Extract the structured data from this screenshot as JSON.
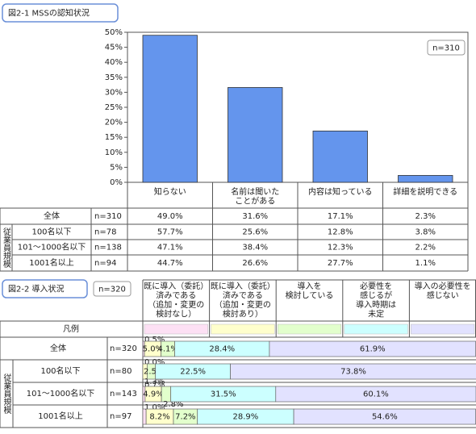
{
  "chart_data": [
    {
      "type": "bar",
      "title": "図2-1 MSSの認知状況",
      "note": "n=310",
      "categories": [
        "知らない",
        "名前は聞いた\nことがある",
        "内容は知っている",
        "詳細を説明できる"
      ],
      "values": [
        49.0,
        31.6,
        17.1,
        2.3
      ],
      "color": "#6495ed",
      "ylim": [
        0,
        50
      ],
      "yticks": [
        {
          "value": 0,
          "label": "0%"
        },
        {
          "value": 5,
          "label": "5%"
        },
        {
          "value": 10,
          "label": "10%"
        },
        {
          "value": 15,
          "label": "15%"
        },
        {
          "value": 20,
          "label": "20%"
        },
        {
          "value": 25,
          "label": "25%"
        },
        {
          "value": 30,
          "label": "30%"
        },
        {
          "value": 35,
          "label": "35%"
        },
        {
          "value": 40,
          "label": "40%"
        },
        {
          "value": 45,
          "label": "45%"
        },
        {
          "value": 50,
          "label": "50%"
        }
      ],
      "table": {
        "group_label": "従業員規模",
        "rows": [
          {
            "label": "全体",
            "n": "n=310",
            "values": [
              49.0,
              31.6,
              17.1,
              2.3
            ],
            "value_labels": [
              "49.0%",
              "31.6%",
              "17.1%",
              "2.3%"
            ]
          },
          {
            "label": "100名以下",
            "n": "n=78",
            "values": [
              57.7,
              25.6,
              12.8,
              3.8
            ],
            "value_labels": [
              "57.7%",
              "25.6%",
              "12.8%",
              "3.8%"
            ]
          },
          {
            "label": "101～1000名以下",
            "n": "n=138",
            "values": [
              47.1,
              38.4,
              12.3,
              2.2
            ],
            "value_labels": [
              "47.1%",
              "38.4%",
              "12.3%",
              "2.2%"
            ]
          },
          {
            "label": "1001名以上",
            "n": "n=94",
            "values": [
              44.7,
              26.6,
              27.7,
              1.1
            ],
            "value_labels": [
              "44.7%",
              "26.6%",
              "27.7%",
              "1.1%"
            ]
          }
        ]
      }
    },
    {
      "type": "stacked_bar",
      "title": "図2-2 導入状況",
      "note": "n=320",
      "legend_title": "凡例",
      "group_label": "従業員規模",
      "categories": [
        "全体",
        "100名以下",
        "101～1000名以下",
        "1001名以上"
      ],
      "n_labels": [
        "n=320",
        "n=80",
        "n=143",
        "n=97"
      ],
      "xlim": [
        0,
        100
      ],
      "series": [
        {
          "name": "既に導入（委託）\n済みである\n（追加・変更の\n検討なし）",
          "color": "#fde0f4",
          "values": [
            0.5,
            0.0,
            0.7,
            1.0
          ],
          "value_labels": [
            "0.5%",
            "0.0%",
            "0.7%",
            "1.0%"
          ]
        },
        {
          "name": "既に導入（委託）\n済みである\n（追加・変更の\n検討あり）",
          "color": "#ffffcc",
          "values": [
            5.0,
            1.3,
            4.9,
            8.2
          ],
          "value_labels": [
            "5.0%",
            "1.3%",
            "4.9%",
            "8.2%"
          ]
        },
        {
          "name": "導入を\n検討している",
          "color": "#e2ffcc",
          "values": [
            4.1,
            2.5,
            2.8,
            7.2
          ],
          "value_labels": [
            "4.1%",
            "2.5%",
            "2.8%",
            "7.2%"
          ]
        },
        {
          "name": "必要性を\n感じるが\n導入時期は\n未定",
          "color": "#ccffff",
          "values": [
            28.4,
            22.5,
            31.5,
            28.9
          ],
          "value_labels": [
            "28.4%",
            "22.5%",
            "31.5%",
            "28.9%"
          ]
        },
        {
          "name": "導入の必要性を\n感じない",
          "color": "#e2e2ff",
          "values": [
            61.9,
            73.8,
            60.1,
            54.6
          ],
          "value_labels": [
            "61.9%",
            "73.8%",
            "60.1%",
            "54.6%"
          ]
        }
      ]
    }
  ]
}
